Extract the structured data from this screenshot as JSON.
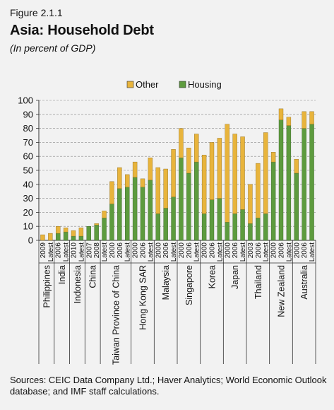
{
  "figure": {
    "label": "Figure 2.1.1",
    "title": "Asia: Household Debt",
    "subtitle": "(In percent of GDP)",
    "sources": "Sources: CEIC Data Company Ltd.; Haver Analytics; World Economic Outlook database; and IMF staff calculations."
  },
  "chart_data": {
    "type": "bar",
    "stacked": true,
    "title": "",
    "xlabel": "",
    "ylabel": "",
    "ylim": [
      0,
      100
    ],
    "yticks": [
      0,
      10,
      20,
      30,
      40,
      50,
      60,
      70,
      80,
      90,
      100
    ],
    "grid": true,
    "legend_position": "top",
    "colors": {
      "Other": "#e8b43c",
      "Housing": "#5d9b3e",
      "axis": "#333333",
      "grid": "#888888"
    },
    "groups": [
      {
        "name": "Philippines",
        "labels": [
          "2009",
          "Latest"
        ],
        "housing": [
          0,
          0
        ],
        "other": [
          4,
          5
        ]
      },
      {
        "name": "India",
        "labels": [
          "2006",
          "Latest"
        ],
        "housing": [
          5,
          6
        ],
        "other": [
          5,
          3
        ]
      },
      {
        "name": "Indonesia",
        "labels": [
          "2010",
          "Latest"
        ],
        "housing": [
          3,
          3
        ],
        "other": [
          4,
          6
        ]
      },
      {
        "name": "China",
        "labels": [
          "2007",
          "2008"
        ],
        "housing": [
          10,
          11
        ],
        "other": [
          0,
          1
        ]
      },
      {
        "name": "Taiwan Province of China",
        "labels": [
          "Latest",
          "2000",
          "2006",
          "Latest"
        ],
        "housing": [
          16,
          26,
          37,
          38
        ],
        "other": [
          5,
          16,
          15,
          9
        ]
      },
      {
        "name": "Hong Kong SAR",
        "labels": [
          "2000",
          "2006",
          "Latest"
        ],
        "housing": [
          45,
          38,
          43
        ],
        "other": [
          11,
          6,
          16
        ]
      },
      {
        "name": "Malaysia",
        "labels": [
          "2000",
          "2006",
          "Latest"
        ],
        "housing": [
          19,
          23,
          31
        ],
        "other": [
          33,
          28,
          34
        ]
      },
      {
        "name": "Singapore",
        "labels": [
          "2000",
          "2006",
          "Latest"
        ],
        "housing": [
          59,
          48,
          56
        ],
        "other": [
          21,
          18,
          20
        ]
      },
      {
        "name": "Korea",
        "labels": [
          "2000",
          "2006",
          "Latest"
        ],
        "housing": [
          19,
          29,
          30
        ],
        "other": [
          42,
          41,
          43
        ]
      },
      {
        "name": "Japan",
        "labels": [
          "2000",
          "2006",
          "Latest"
        ],
        "housing": [
          13,
          19,
          22
        ],
        "other": [
          70,
          57,
          52
        ]
      },
      {
        "name": "Thailand",
        "labels": [
          "2003",
          "2006",
          "Latest"
        ],
        "housing": [
          12,
          16,
          19
        ],
        "other": [
          28,
          39,
          58
        ]
      },
      {
        "name": "New Zealand",
        "labels": [
          "2000",
          "2006",
          "Latest"
        ],
        "housing": [
          56,
          86,
          82
        ],
        "other": [
          7,
          8,
          6
        ]
      },
      {
        "name": "Australia",
        "labels": [
          "2000",
          "2006",
          "Latest"
        ],
        "housing": [
          48,
          80,
          83
        ],
        "other": [
          10,
          12,
          9
        ]
      }
    ],
    "series": [
      {
        "name": "Other",
        "key": "other"
      },
      {
        "name": "Housing",
        "key": "housing"
      }
    ]
  }
}
